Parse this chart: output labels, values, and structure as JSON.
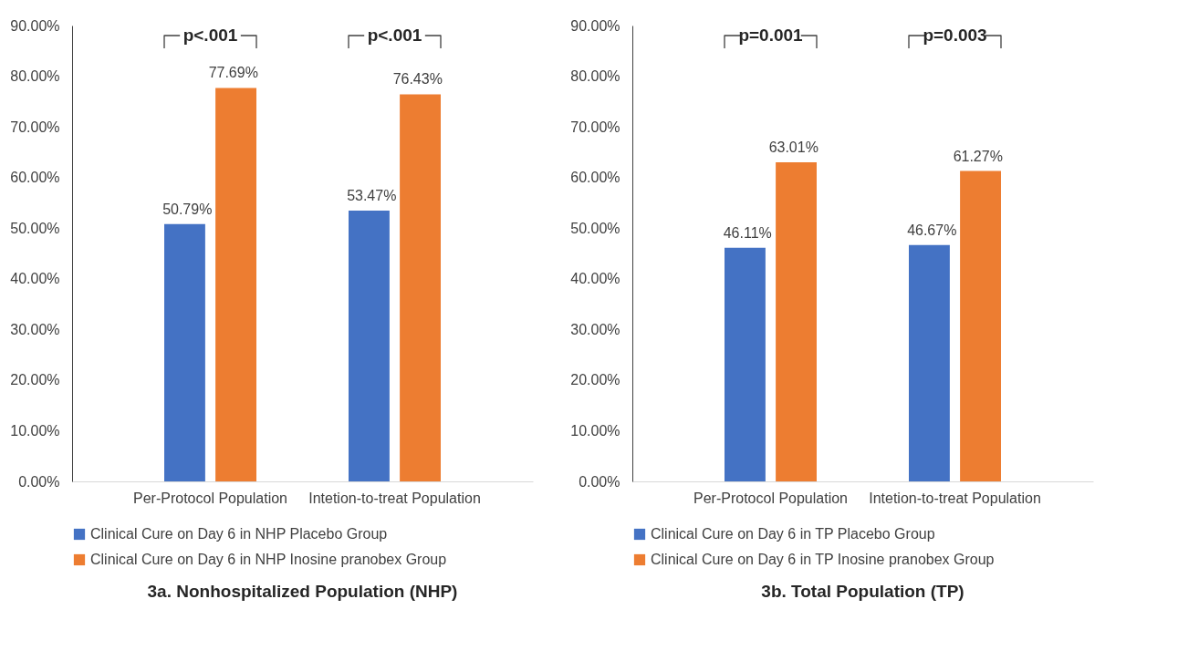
{
  "chart_data": [
    {
      "type": "bar",
      "title": "3a. Nonhospitalized Population (NHP)",
      "categories": [
        "Per-Protocol Population",
        "Intetion-to-treat Population"
      ],
      "legend": "bottom",
      "ylim": [
        0,
        90
      ],
      "yticks": [
        {
          "value": 0,
          "label": "0.00%"
        },
        {
          "value": 10,
          "label": "10.00%"
        },
        {
          "value": 20,
          "label": "20.00%"
        },
        {
          "value": 30,
          "label": "30.00%"
        },
        {
          "value": 40,
          "label": "40.00%"
        },
        {
          "value": 50,
          "label": "50.00%"
        },
        {
          "value": 60,
          "label": "60.00%"
        },
        {
          "value": 70,
          "label": "70.00%"
        },
        {
          "value": 80,
          "label": "80.00%"
        },
        {
          "value": 90,
          "label": "90.00%"
        }
      ],
      "series": [
        {
          "name": "Clinical Cure on Day 6 in NHP Placebo Group",
          "color": "#4472c4",
          "values": [
            50.79,
            53.47
          ],
          "value_labels": [
            "50.79%",
            "53.47%"
          ]
        },
        {
          "name": "Clinical Cure on Day 6 in NHP Inosine pranobex Group",
          "color": "#ed7d31",
          "values": [
            77.69,
            76.43
          ],
          "value_labels": [
            "77.69%",
            "76.43%"
          ]
        }
      ],
      "annotations": [
        "p<.001",
        "p<.001"
      ]
    },
    {
      "type": "bar",
      "title": "3b. Total Population (TP)",
      "categories": [
        "Per-Protocol Population",
        "Intetion-to-treat Population"
      ],
      "legend": "bottom",
      "ylim": [
        0,
        90
      ],
      "yticks": [
        {
          "value": 0,
          "label": "0.00%"
        },
        {
          "value": 10,
          "label": "10.00%"
        },
        {
          "value": 20,
          "label": "20.00%"
        },
        {
          "value": 30,
          "label": "30.00%"
        },
        {
          "value": 40,
          "label": "40.00%"
        },
        {
          "value": 50,
          "label": "50.00%"
        },
        {
          "value": 60,
          "label": "60.00%"
        },
        {
          "value": 70,
          "label": "70.00%"
        },
        {
          "value": 80,
          "label": "80.00%"
        },
        {
          "value": 90,
          "label": "90.00%"
        }
      ],
      "series": [
        {
          "name": "Clinical Cure on Day 6 in TP Placebo Group",
          "color": "#4472c4",
          "values": [
            46.11,
            46.67
          ],
          "value_labels": [
            "46.11%",
            "46.67%"
          ]
        },
        {
          "name": "Clinical Cure on Day 6 in TP Inosine pranobex Group",
          "color": "#ed7d31",
          "values": [
            63.01,
            61.27
          ],
          "value_labels": [
            "63.01%",
            "61.27%"
          ]
        }
      ],
      "annotations": [
        "p=0.001",
        "p=0.003"
      ]
    }
  ]
}
